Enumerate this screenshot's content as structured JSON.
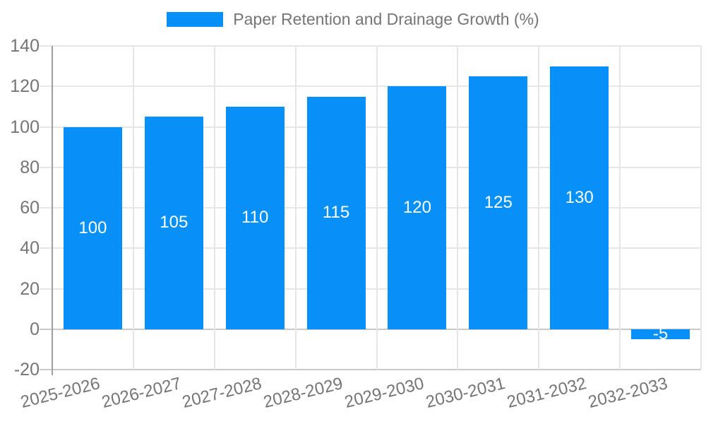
{
  "legend": {
    "label": "Paper Retention and Drainage Growth (%)"
  },
  "colors": {
    "bar": "#0690f8",
    "axis_text": "#757575",
    "grid": "#e6e6e6",
    "strong_grid": "#c9c9c9",
    "axis_line": "#9e9e9e",
    "value_label": "#ffffff",
    "background": "#ffffff"
  },
  "chart_data": {
    "type": "bar",
    "title": "Paper Retention and Drainage Growth (%)",
    "categories": [
      "2025-2026",
      "2026-2027",
      "2027-2028",
      "2028-2029",
      "2029-2030",
      "2030-2031",
      "2031-2032",
      "2032-2033"
    ],
    "values": [
      100,
      105,
      110,
      115,
      120,
      125,
      130,
      -5
    ],
    "value_labels": [
      "100",
      "105",
      "110",
      "115",
      "120",
      "125",
      "130",
      "-5"
    ],
    "xlabel": "",
    "ylabel": "",
    "ylim": [
      -20,
      140
    ],
    "yticks": [
      140,
      120,
      100,
      80,
      60,
      40,
      20,
      0,
      -20
    ],
    "grid": true,
    "legend_position": "top-center",
    "bar_color": "#0690f8"
  }
}
